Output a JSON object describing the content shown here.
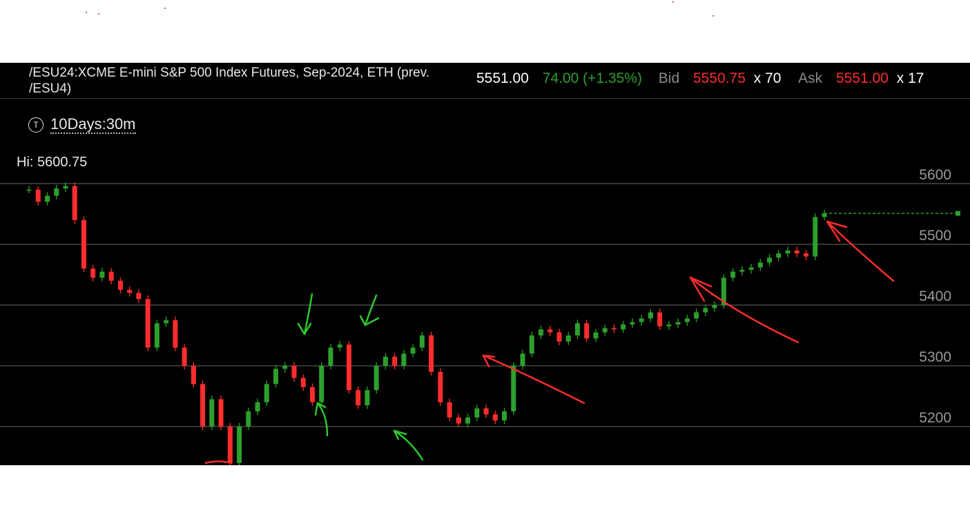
{
  "header": {
    "symbol_title": "/ESU24:XCME E-mini S&P 500 Index Futures, Sep-2024, ETH (prev. /ESU4)",
    "last_price": "5551.00",
    "change": "74.00 (+1.35%)",
    "bid_label": "Bid",
    "bid_price": "5550.75",
    "bid_size": "x 70",
    "ask_label": "Ask",
    "ask_price": "5551.00",
    "ask_size": "x 17"
  },
  "period": {
    "icon": "T",
    "label": "10Days:30m"
  },
  "hi_label": "Hi: 5600.75",
  "colors": {
    "up": "#2ca02c",
    "down": "#ff2d2d",
    "volume": "#808080",
    "grid": "#555555",
    "last_price_line": "#2ca02c"
  },
  "chart_data": {
    "type": "candlestick",
    "interval": "30m",
    "span": "10Days",
    "ylim": [
      5160,
      5630
    ],
    "y_ticks": [
      5200,
      5300,
      5400,
      5500,
      5600
    ],
    "high": 5600.75,
    "last": 5551.0,
    "series": [
      {
        "name": "price",
        "close": [
          5590,
          5570,
          5580,
          5592,
          5596,
          5540,
          5460,
          5445,
          5455,
          5440,
          5425,
          5420,
          5410,
          5330,
          5370,
          5375,
          5330,
          5300,
          5270,
          5200,
          5245,
          5200,
          5140,
          5200,
          5225,
          5240,
          5270,
          5295,
          5300,
          5280,
          5265,
          5240,
          5300,
          5330,
          5335,
          5260,
          5235,
          5260,
          5300,
          5315,
          5300,
          5320,
          5330,
          5350,
          5290,
          5240,
          5215,
          5205,
          5215,
          5230,
          5220,
          5210,
          5225,
          5300,
          5320,
          5350,
          5360,
          5355,
          5340,
          5350,
          5370,
          5345,
          5355,
          5362,
          5360,
          5368,
          5372,
          5378,
          5388,
          5365,
          5368,
          5372,
          5378,
          5388,
          5395,
          5400,
          5445,
          5455,
          5458,
          5462,
          5470,
          5478,
          5485,
          5490,
          5485,
          5480,
          5545,
          5551
        ]
      },
      {
        "name": "volume",
        "values": [
          0,
          0,
          0,
          0,
          0,
          0,
          0,
          0,
          0,
          0,
          0,
          0,
          0,
          0,
          0,
          0,
          0,
          0,
          0,
          0,
          0,
          0,
          0,
          0,
          0,
          0,
          0,
          0,
          0,
          0,
          0,
          0,
          0,
          0,
          0,
          0,
          0,
          0,
          0,
          0,
          0,
          0,
          0,
          0,
          0,
          0,
          0,
          0,
          0,
          0,
          0,
          0,
          0,
          0,
          0,
          0,
          0,
          0,
          0,
          0,
          0,
          0,
          0,
          0,
          0,
          0,
          0,
          0,
          0,
          0,
          0,
          0,
          0,
          0,
          0,
          0,
          0,
          0,
          0,
          0,
          0,
          0,
          0,
          0,
          0,
          0,
          0,
          0
        ]
      }
    ],
    "annotations": [
      {
        "type": "arrow",
        "color": "#ff2d2d",
        "label": ""
      },
      {
        "type": "arrow",
        "color": "#ff2d2d",
        "label": ""
      },
      {
        "type": "arrow",
        "color": "#ff2d2d",
        "label": ""
      },
      {
        "type": "arrow",
        "color": "#2ec92e",
        "label": ""
      },
      {
        "type": "arrow",
        "color": "#2ec92e",
        "label": ""
      },
      {
        "type": "arrow",
        "color": "#2ec92e",
        "label": ""
      },
      {
        "type": "arrow",
        "color": "#2ec92e",
        "label": ""
      }
    ]
  }
}
